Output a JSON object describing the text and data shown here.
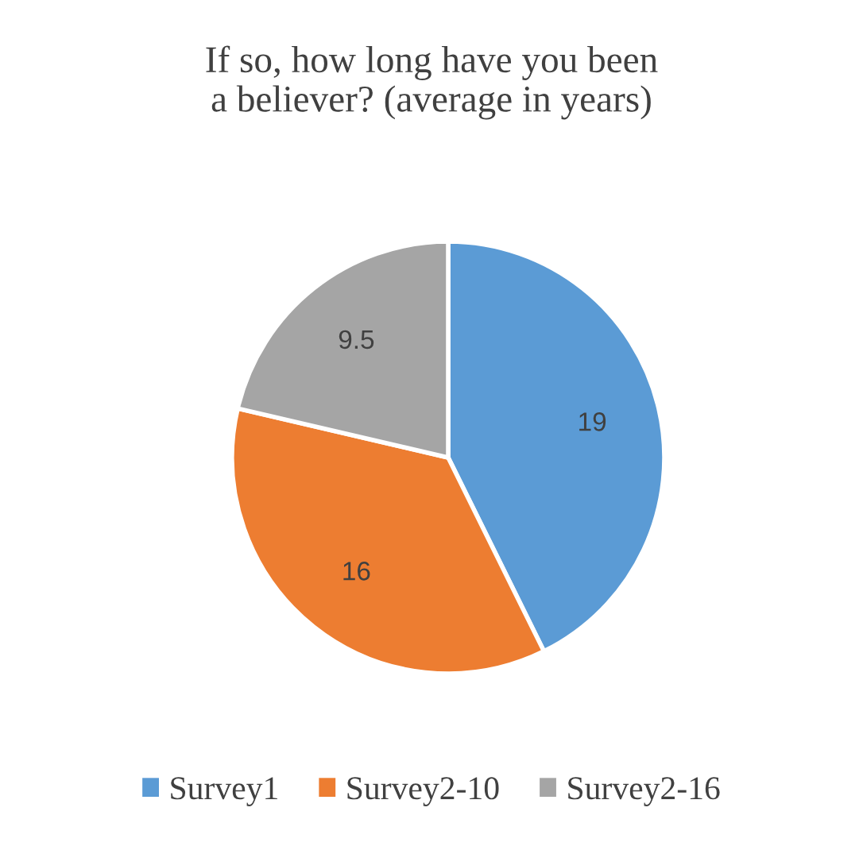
{
  "chart_data": {
    "type": "pie",
    "title": "If so, how long have you been\na believer? (average in years)",
    "categories": [
      "Survey1",
      "Survey2-10",
      "Survey2-16"
    ],
    "values": [
      19,
      16,
      9.5
    ],
    "colors": [
      "#5b9bd5",
      "#ed7d31",
      "#a5a5a5"
    ],
    "data_labels": true,
    "legend": "bottom"
  }
}
